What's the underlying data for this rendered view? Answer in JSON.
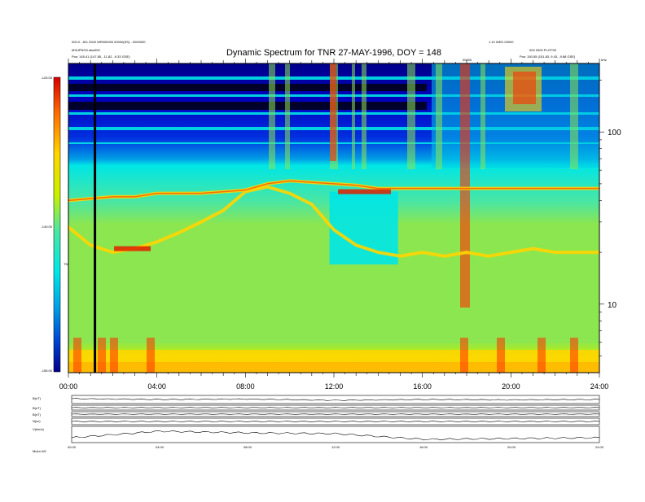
{
  "header": {
    "title": "Dynamic Spectrum for TNR 27-MAY-1996, DOY = 148",
    "left_line1": "000.0 - 811 2000 WR000000 00000(SS) - 0000000",
    "left_line2": "MSUPNG3 aiss000",
    "left_line3": "Pos:  145.41 (147.85, -11.82, -9.33 GSE)",
    "right_line1": "1.10 WED 00000",
    "right_line2": "000 0000 PLOTS0",
    "right_line3": "Pos:  150.55 (151.83, 9.43, -9.88 GSE)",
    "marker_label": "00000",
    "units_label": "kHz"
  },
  "colorbar": {
    "ticks": [
      "-125.00",
      "-140.00",
      "-155.00"
    ],
    "label": "TNR",
    "colors": [
      "#d40000",
      "#ff6a00",
      "#ffd500",
      "#c8f000",
      "#8ce650",
      "#4ce6a0",
      "#00e6e6",
      "#00a0e6",
      "#0050d0",
      "#0000a0"
    ]
  },
  "chart_data": {
    "type": "heatmap",
    "title": "Dynamic Spectrum for TNR 27-MAY-1996, DOY = 148",
    "x_ticks": [
      "00:00",
      "04:00",
      "08:00",
      "12:00",
      "16:00",
      "20:00",
      "24:00"
    ],
    "xlim": [
      0,
      24
    ],
    "y_scale": "log",
    "ylim": [
      4,
      250
    ],
    "y_ticks_right": [
      {
        "value": 100,
        "label": "100"
      },
      {
        "value": 10,
        "label": "10"
      }
    ],
    "color_range": [
      -155,
      -125
    ],
    "features": [
      {
        "name": "plasma-line-a",
        "freq": [
          28,
          22,
          20,
          21,
          23,
          26,
          30,
          35,
          45,
          48,
          44,
          38,
          27,
          22,
          20,
          19,
          20,
          19,
          20,
          19,
          20,
          21,
          20,
          20,
          20
        ]
      },
      {
        "name": "plasma-line-b",
        "freq": [
          40,
          41,
          42,
          42,
          44,
          44,
          44,
          45,
          46,
          50,
          52,
          51,
          50,
          49,
          47,
          47,
          47,
          47,
          47,
          47,
          47,
          47,
          47,
          47,
          47
        ]
      }
    ],
    "black_line_x": 1.2
  },
  "lower_panels": {
    "labels": [
      "B(nT)",
      "B(nT)",
      "B(nT)",
      "N(cc)",
      "V(km/s)"
    ],
    "x_ticks": [
      "00:00",
      "04:00",
      "08:00",
      "12:00",
      "16:00",
      "20:00",
      "24:00"
    ],
    "footer_label": "Mulm 0/5"
  }
}
